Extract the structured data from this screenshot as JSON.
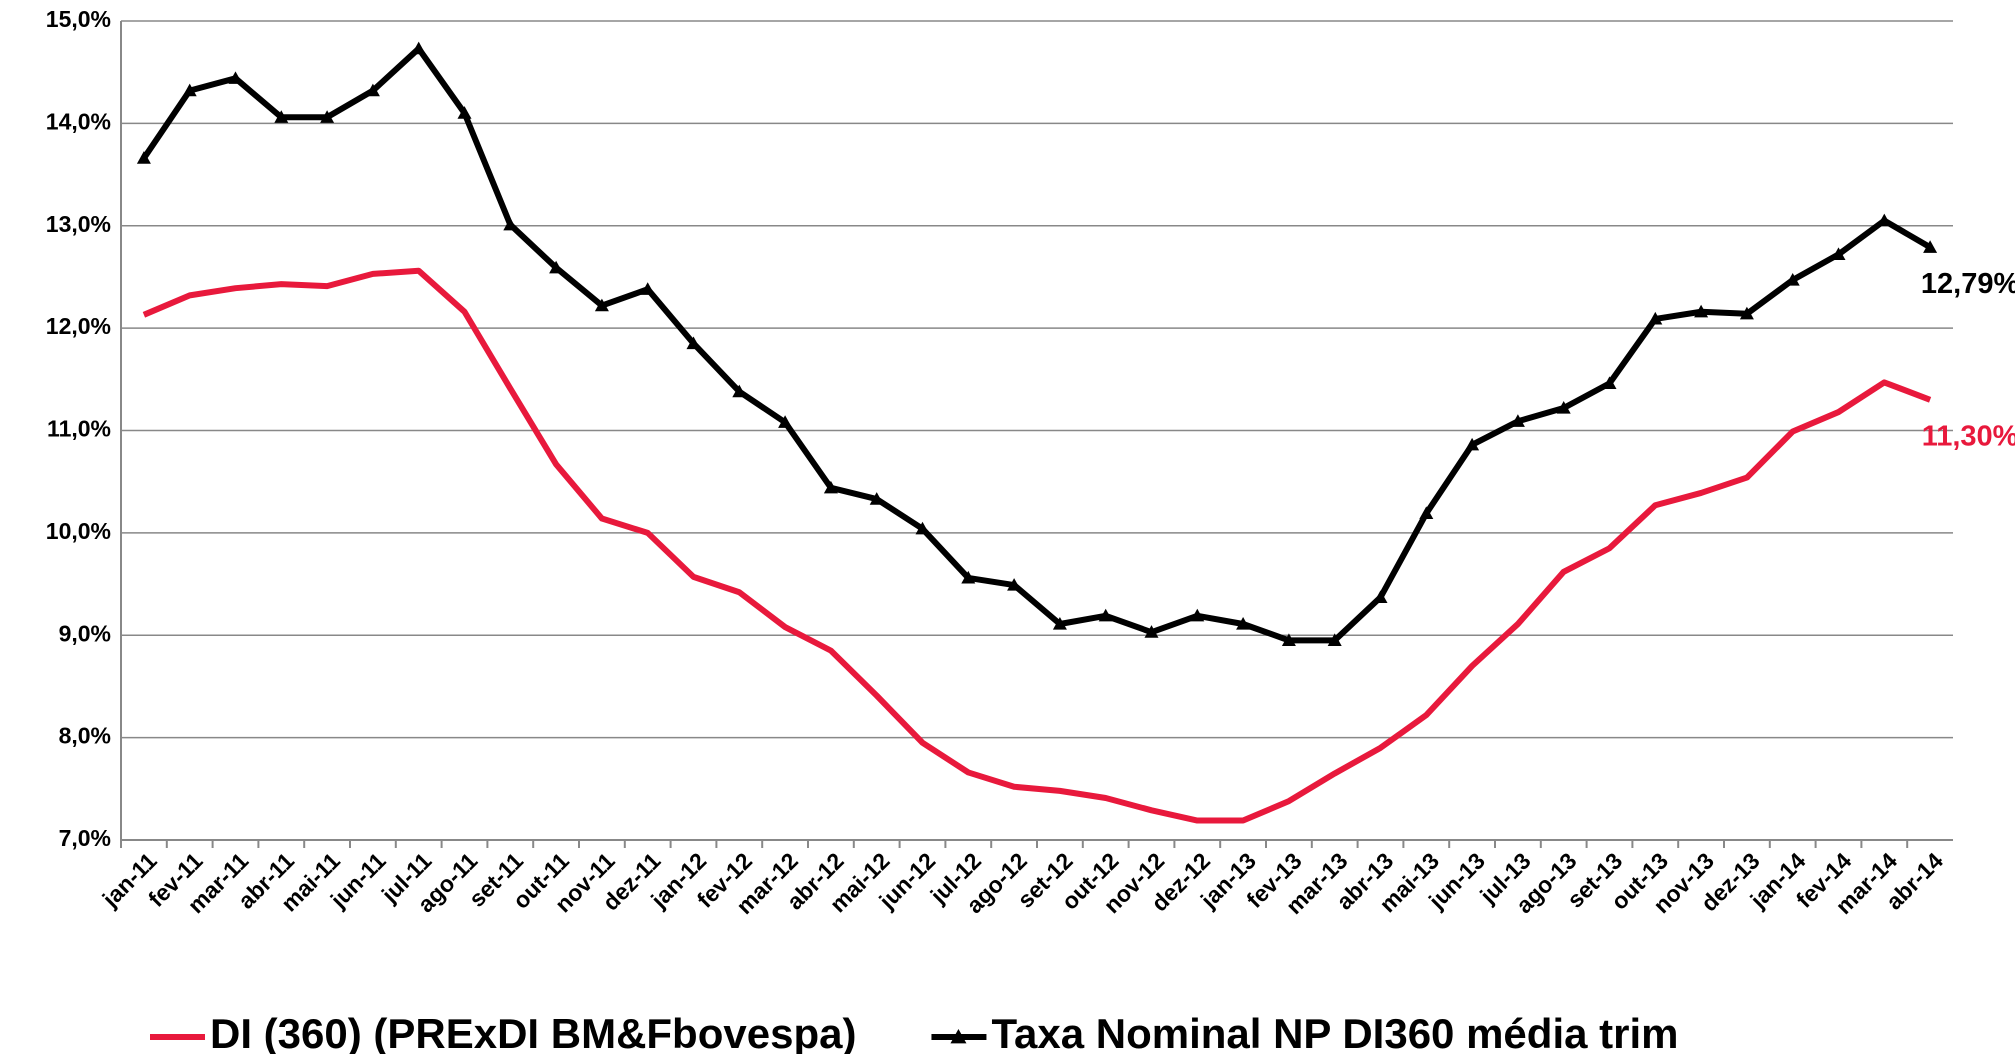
{
  "chart_data": {
    "type": "line",
    "categories": [
      "jan-11",
      "fev-11",
      "mar-11",
      "abr-11",
      "mai-11",
      "jun-11",
      "jul-11",
      "ago-11",
      "set-11",
      "out-11",
      "nov-11",
      "dez-11",
      "jan-12",
      "fev-12",
      "mar-12",
      "abr-12",
      "mai-12",
      "jun-12",
      "jul-12",
      "ago-12",
      "set-12",
      "out-12",
      "nov-12",
      "dez-12",
      "jan-13",
      "fev-13",
      "mar-13",
      "abr-13",
      "mai-13",
      "jun-13",
      "jul-13",
      "ago-13",
      "set-13",
      "out-13",
      "nov-13",
      "dez-13",
      "jan-14",
      "fev-14",
      "mar-14",
      "abr-14"
    ],
    "series": [
      {
        "name": "DI (360) (PRExDI BM&Fbovespa)",
        "color": "#e8193c",
        "marker": "none",
        "values": [
          12.13,
          12.32,
          12.39,
          12.43,
          12.41,
          12.53,
          12.56,
          12.16,
          11.41,
          10.67,
          10.14,
          10.0,
          9.57,
          9.42,
          9.08,
          8.85,
          8.41,
          7.95,
          7.66,
          7.52,
          7.48,
          7.41,
          7.29,
          7.19,
          7.19,
          7.38,
          7.65,
          7.9,
          8.22,
          8.7,
          9.11,
          9.62,
          9.85,
          10.27,
          10.39,
          10.54,
          10.99,
          11.18,
          11.47,
          11.3
        ],
        "value_labels": [
          null,
          null,
          null,
          null,
          null,
          null,
          null,
          null,
          null,
          null,
          null,
          null,
          null,
          null,
          null,
          null,
          null,
          null,
          null,
          null,
          null,
          null,
          null,
          null,
          null,
          null,
          null,
          null,
          null,
          null,
          null,
          null,
          null,
          null,
          null,
          null,
          null,
          null,
          null,
          "11,30%"
        ]
      },
      {
        "name": "Taxa Nominal  NP DI360 média trim",
        "color": "#000000",
        "marker": "triangle",
        "values": [
          13.66,
          14.32,
          14.44,
          14.06,
          14.06,
          14.32,
          14.73,
          14.1,
          13.01,
          12.59,
          12.22,
          12.38,
          11.85,
          11.38,
          11.08,
          10.44,
          10.33,
          10.04,
          9.56,
          9.49,
          9.11,
          9.19,
          9.03,
          9.19,
          9.11,
          8.95,
          8.95,
          9.37,
          10.19,
          10.86,
          11.09,
          11.22,
          11.46,
          12.09,
          12.16,
          12.14,
          12.47,
          12.72,
          13.05,
          12.79
        ],
        "value_labels": [
          null,
          null,
          null,
          null,
          null,
          null,
          null,
          null,
          null,
          null,
          null,
          null,
          null,
          null,
          null,
          null,
          null,
          null,
          null,
          null,
          null,
          null,
          null,
          null,
          null,
          null,
          null,
          null,
          null,
          null,
          null,
          null,
          null,
          null,
          null,
          null,
          null,
          null,
          null,
          "12,79%"
        ]
      }
    ],
    "ylim": [
      7,
      15
    ],
    "yticks": [
      {
        "value": 7,
        "label": "7,0%"
      },
      {
        "value": 8,
        "label": "8,0%"
      },
      {
        "value": 9,
        "label": "9,0%"
      },
      {
        "value": 10,
        "label": "10,0%"
      },
      {
        "value": 11,
        "label": "11,0%"
      },
      {
        "value": 12,
        "label": "12,0%"
      },
      {
        "value": 13,
        "label": "13,0%"
      },
      {
        "value": 14,
        "label": "14,0%"
      },
      {
        "value": 15,
        "label": "15,0%"
      }
    ],
    "grid": true,
    "legend": "bottom"
  }
}
